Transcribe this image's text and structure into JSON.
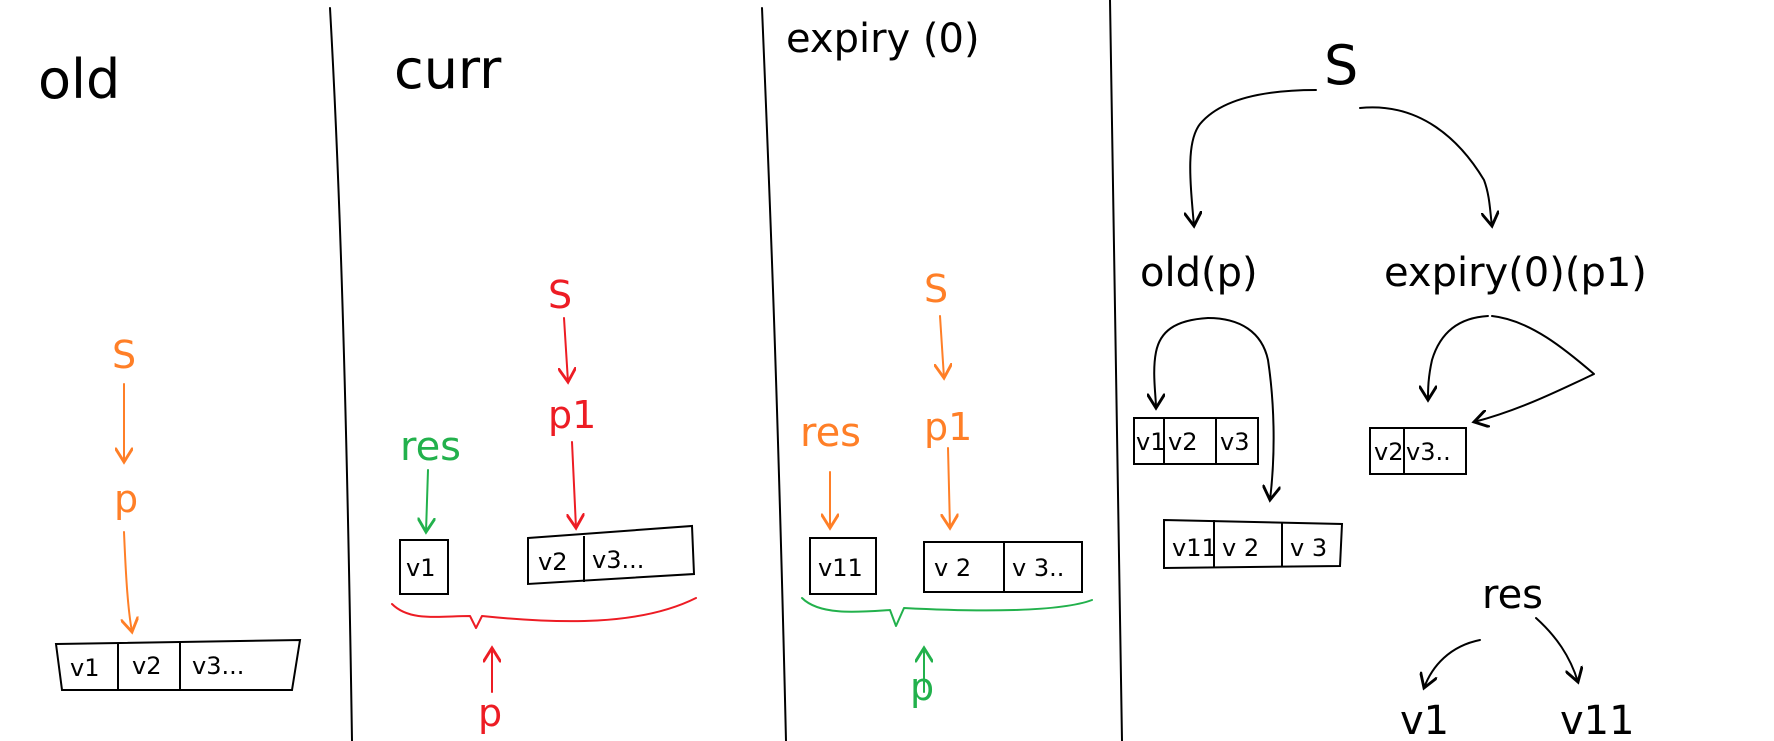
{
  "colors": {
    "ink": "#000000",
    "orange": "#ff7f27",
    "red": "#ed1c24",
    "green": "#22b14c"
  },
  "panels": {
    "old": {
      "title": "old",
      "s": "S",
      "p": "p",
      "cells": [
        "v1",
        "v2",
        "v3..."
      ]
    },
    "curr": {
      "title": "curr",
      "s": "S",
      "p1": "p1",
      "res": "res",
      "res_cell": "v1",
      "cells": [
        "v2",
        "v3..."
      ],
      "p": "p"
    },
    "expiry": {
      "title": "expiry (0)",
      "s": "S",
      "p1": "p1",
      "res": "res",
      "res_cell": "v11",
      "cells": [
        "v 2",
        "v 3.."
      ],
      "p": "p"
    },
    "tree": {
      "root": "S",
      "left": "old(p)",
      "right": "expiry(0)(p1)",
      "left_cells": [
        "v1",
        "v2",
        "v3"
      ],
      "left_cells_2": [
        "v11",
        "v 2",
        "v 3"
      ],
      "right_cells": [
        "v2",
        "v3.."
      ],
      "res": "res",
      "res_left": "v1",
      "res_right": "v11"
    }
  }
}
